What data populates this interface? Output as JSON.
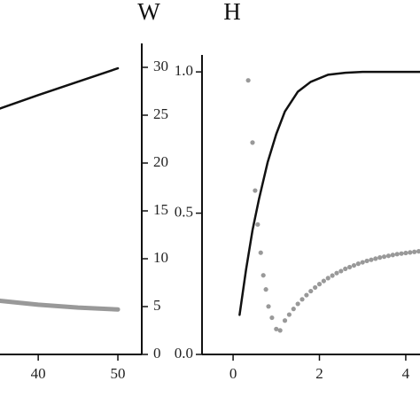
{
  "chart_data": [
    {
      "type": "line",
      "title": "W",
      "yaxis_side": "right",
      "xlim": [
        35.2,
        53
      ],
      "xticks": [
        40,
        50
      ],
      "ylim": [
        0,
        32.5
      ],
      "yticks": [
        0,
        5,
        10,
        15,
        20,
        25,
        30
      ],
      "series": [
        {
          "color": "#111111",
          "style": "line",
          "x": [
            35.2,
            40,
            45,
            50
          ],
          "values": [
            25.7,
            27.1,
            28.5,
            29.9
          ]
        },
        {
          "color": "#999999",
          "style": "thick",
          "x": [
            35.2,
            40,
            45,
            50
          ],
          "values": [
            5.6,
            5.2,
            4.9,
            4.7
          ]
        }
      ]
    },
    {
      "type": "line",
      "title": "H",
      "yaxis_side": "left",
      "xlim": [
        -0.72,
        4.33
      ],
      "xticks": [
        0,
        2,
        4
      ],
      "ylim": [
        0,
        1.06
      ],
      "yticks": [
        {
          "value": 0,
          "label": "0.0"
        },
        {
          "value": 0.5,
          "label": "0.5"
        },
        {
          "value": 1,
          "label": "1.0"
        }
      ],
      "series": [
        {
          "color": "#111111",
          "style": "line",
          "x": [
            0.15,
            0.3,
            0.45,
            0.6,
            0.8,
            1.0,
            1.2,
            1.5,
            1.8,
            2.2,
            2.6,
            3.0,
            3.5,
            4.0,
            4.33
          ],
          "values": [
            0.14,
            0.3,
            0.44,
            0.55,
            0.68,
            0.78,
            0.86,
            0.93,
            0.965,
            0.99,
            0.997,
            1.0,
            1.0,
            1.0,
            1.0
          ]
        },
        {
          "color": "#999999",
          "style": "markers",
          "x": [
            0.35,
            0.45,
            0.51,
            0.57,
            0.64,
            0.7,
            0.76,
            0.82,
            0.9,
            1.0,
            1.09,
            1.2,
            1.3,
            1.4,
            1.5,
            1.6,
            1.7,
            1.8,
            1.9,
            2.0,
            2.1,
            2.2,
            2.3,
            2.4,
            2.5,
            2.6,
            2.7,
            2.8,
            2.9,
            3.0,
            3.1,
            3.2,
            3.3,
            3.4,
            3.5,
            3.6,
            3.7,
            3.8,
            3.9,
            4.0,
            4.1,
            4.2,
            4.3
          ],
          "values": [
            0.97,
            0.75,
            0.58,
            0.46,
            0.36,
            0.28,
            0.23,
            0.17,
            0.13,
            0.09,
            0.085,
            0.12,
            0.141,
            0.161,
            0.179,
            0.195,
            0.21,
            0.224,
            0.237,
            0.249,
            0.26,
            0.27,
            0.279,
            0.288,
            0.295,
            0.303,
            0.309,
            0.315,
            0.321,
            0.326,
            0.331,
            0.335,
            0.339,
            0.343,
            0.346,
            0.349,
            0.352,
            0.355,
            0.357,
            0.359,
            0.361,
            0.363,
            0.365
          ]
        }
      ]
    }
  ]
}
